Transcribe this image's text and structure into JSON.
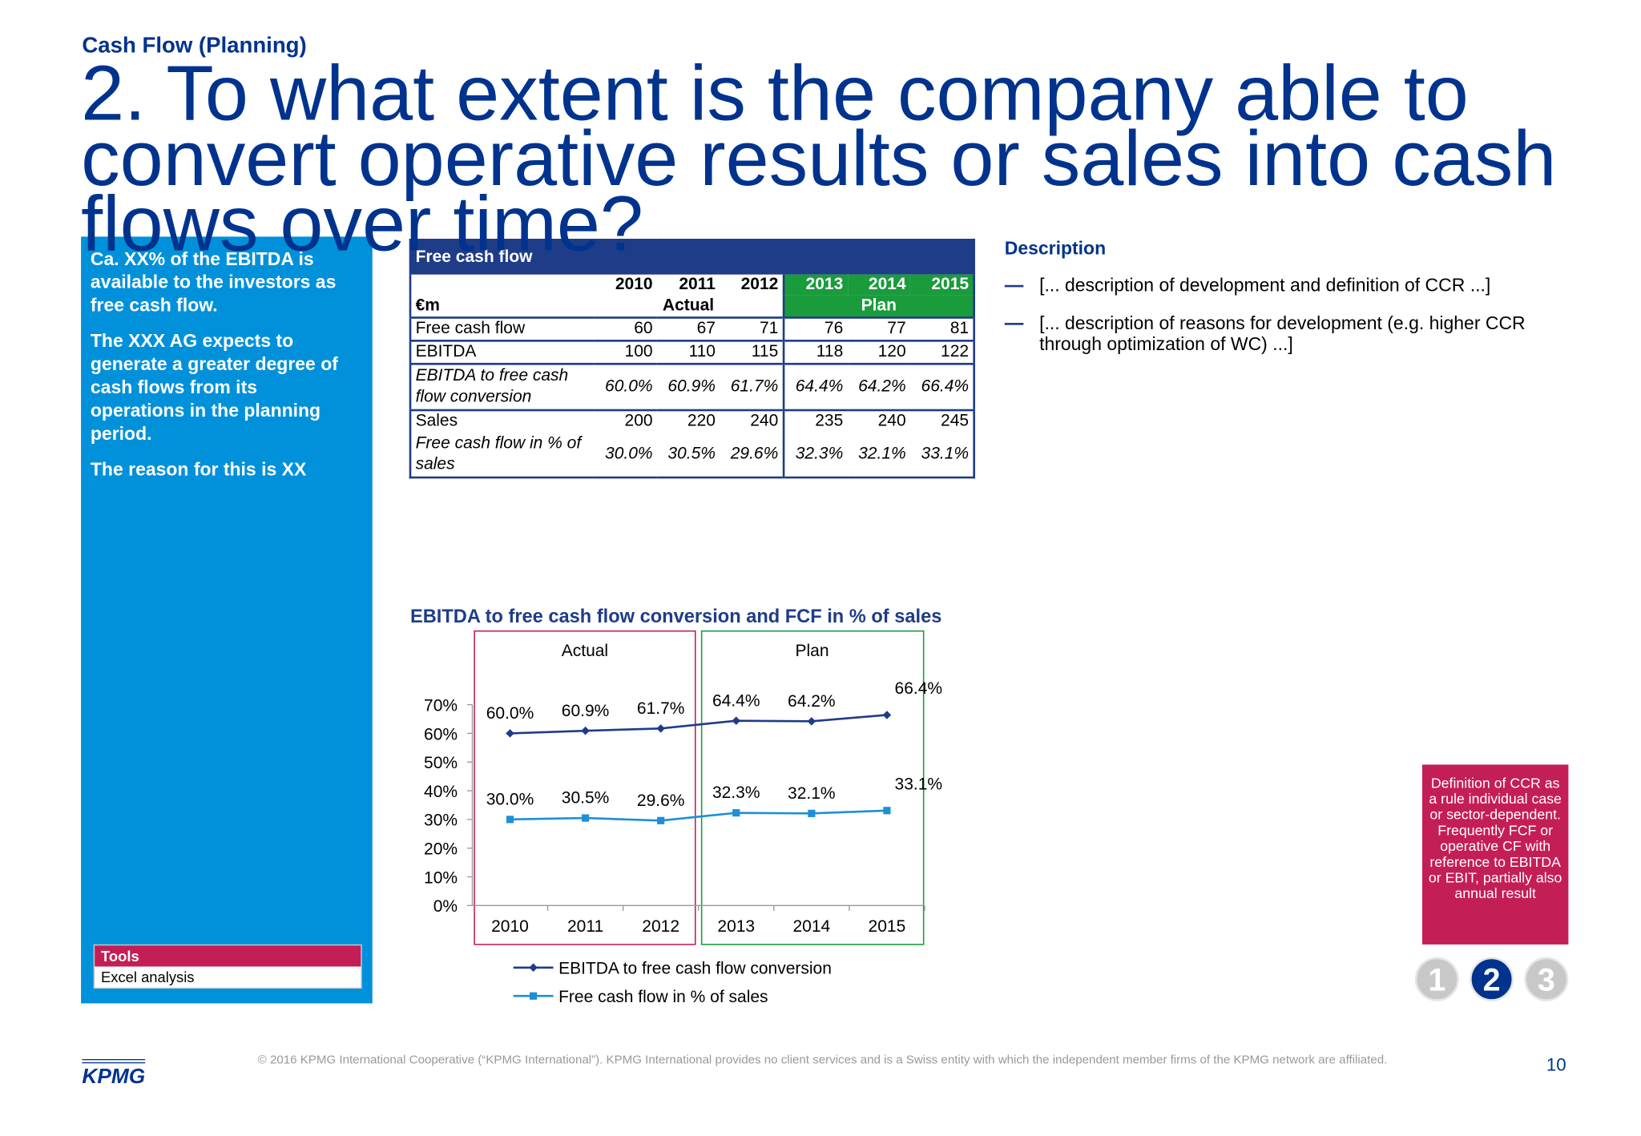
{
  "header": {
    "subtitle": "Cash Flow (Planning)",
    "title": "2. To what extent is the company able to convert operative results or sales into cash flows over time?"
  },
  "left_panel": {
    "paragraphs": [
      "Ca. XX% of the EBITDA is available to the investors as free cash flow.",
      "The XXX AG expects to generate a greater degree of cash flows from its operations in the planning period.",
      "The reason for this is XX"
    ],
    "tools_title": "Tools",
    "tools_item": "Excel analysis"
  },
  "table": {
    "title": "Free cash flow",
    "unit": "€m",
    "years": [
      "2010",
      "2011",
      "2012",
      "2013",
      "2014",
      "2015"
    ],
    "groups": [
      "Actual",
      "Plan"
    ],
    "rows": [
      [
        "Free cash flow",
        60,
        67,
        71,
        76,
        77,
        81
      ],
      [
        "EBITDA",
        100,
        110,
        115,
        118,
        120,
        122
      ],
      [
        "EBITDA to free cash flow conversion",
        "60.0%",
        "60.9%",
        "61.7%",
        "64.4%",
        "64.2%",
        "66.4%"
      ],
      [
        "Sales",
        200,
        220,
        240,
        235,
        240,
        245
      ],
      [
        "Free cash flow in % of sales",
        "30.0%",
        "30.5%",
        "29.6%",
        "32.3%",
        "32.1%",
        "33.1%"
      ]
    ]
  },
  "chart_data": {
    "type": "line",
    "title": "EBITDA to free cash flow conversion and FCF in % of sales",
    "group_labels": [
      "Actual",
      "Plan"
    ],
    "categories": [
      "2010",
      "2011",
      "2012",
      "2013",
      "2014",
      "2015"
    ],
    "series": [
      {
        "name": "EBITDA to free cash flow conversion",
        "color": "#1f3c88",
        "marker": "diamond",
        "values": [
          60.0,
          60.9,
          61.7,
          64.4,
          64.2,
          66.4
        ],
        "value_labels": [
          "60.0%",
          "60.9%",
          "61.7%",
          "64.4%",
          "64.2%",
          "66.4%"
        ]
      },
      {
        "name": "Free cash flow in % of sales",
        "color": "#1e8fd6",
        "marker": "square",
        "values": [
          30.0,
          30.5,
          29.6,
          32.3,
          32.1,
          33.1
        ],
        "value_labels": [
          "30.0%",
          "30.5%",
          "29.6%",
          "32.3%",
          "32.1%",
          "33.1%"
        ]
      }
    ],
    "ylim": [
      0,
      70
    ],
    "yticks": [
      {
        "value": 0,
        "label": "0%"
      },
      {
        "value": 10,
        "label": "10%"
      },
      {
        "value": 20,
        "label": "20%"
      },
      {
        "value": 30,
        "label": "30%"
      },
      {
        "value": 40,
        "label": "40%"
      },
      {
        "value": 50,
        "label": "50%"
      },
      {
        "value": 60,
        "label": "60%"
      },
      {
        "value": 70,
        "label": "70%"
      }
    ]
  },
  "description": {
    "title": "Description",
    "items": [
      "[... description of development and definition of CCR ...]",
      "[... description of reasons for development (e.g. higher CCR through optimization of WC) ...]"
    ]
  },
  "note": "Definition of CCR as a rule individual case or sector-dependent. Frequently FCF or operative CF with reference to EBITDA or EBIT, partially also annual result",
  "pager": [
    "1",
    "2",
    "3"
  ],
  "footer": {
    "logo": "KPMG",
    "copyright": "© 2016 KPMG International Cooperative (“KPMG International”). KPMG International provides no client services and is a Swiss entity with which the independent member firms of the KPMG network are affiliated.",
    "page": "10"
  }
}
